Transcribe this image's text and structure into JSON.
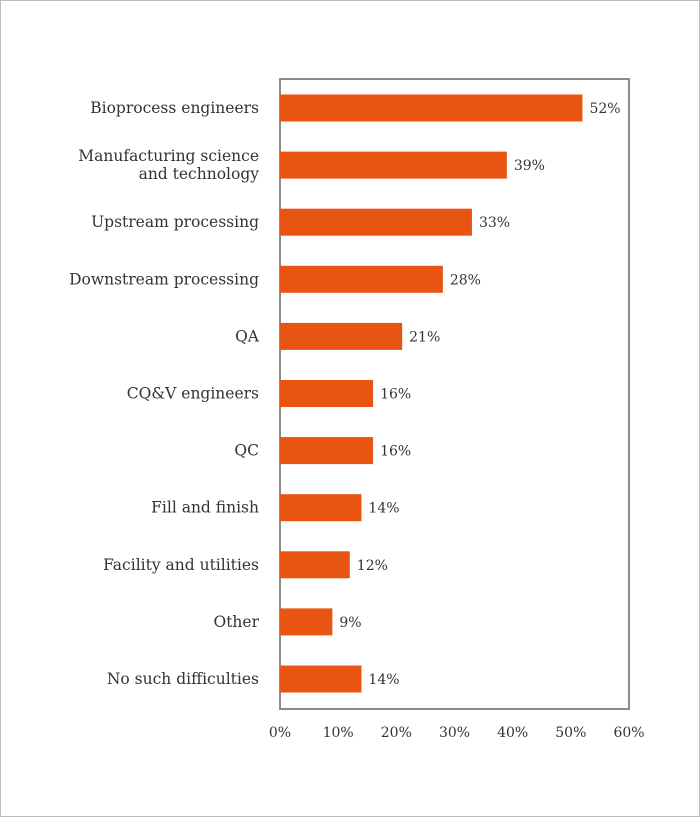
{
  "chart_data": {
    "type": "bar",
    "orientation": "horizontal",
    "categories": [
      [
        "Bioprocess engineers"
      ],
      [
        "Manufacturing science",
        "and technology"
      ],
      [
        "Upstream processing"
      ],
      [
        "Downstream processing"
      ],
      [
        "QA"
      ],
      [
        "CQ&V engineers"
      ],
      [
        "QC"
      ],
      [
        "Fill and finish"
      ],
      [
        "Facility and utilities"
      ],
      [
        "Other"
      ],
      [
        "No such difficulties"
      ]
    ],
    "values": [
      52,
      39,
      33,
      28,
      21,
      16,
      16,
      14,
      12,
      9,
      14
    ],
    "value_labels": [
      "52%",
      "39%",
      "33%",
      "28%",
      "21%",
      "16%",
      "16%",
      "14%",
      "12%",
      "9%",
      "14%"
    ],
    "x_ticks": [
      0,
      10,
      20,
      30,
      40,
      50,
      60
    ],
    "x_tick_labels": [
      "0%",
      "10%",
      "20%",
      "30%",
      "40%",
      "50%",
      "60%"
    ],
    "xlim": [
      0,
      60
    ],
    "grid": false,
    "colors": {
      "bar": "#E85412",
      "axis": "#8c8c8c",
      "text": "#333333"
    }
  }
}
